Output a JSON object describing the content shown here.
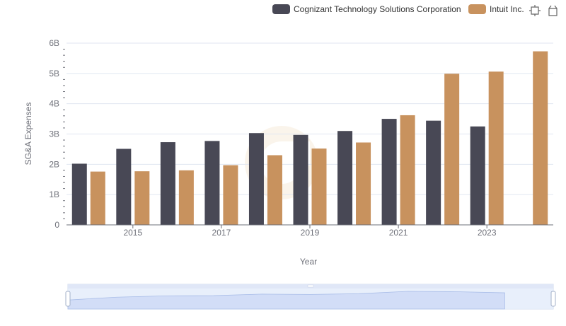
{
  "legend": {
    "items": [
      {
        "label": "Cognizant Technology Solutions Corporation",
        "color": "#484855"
      },
      {
        "label": "Intuit Inc.",
        "color": "#c8925e"
      }
    ]
  },
  "toolbox": {
    "icons": [
      "zoom-icon",
      "restore-icon"
    ]
  },
  "chart_data": {
    "type": "bar",
    "xlabel": "Year",
    "ylabel": "SG&A Expenses",
    "x": [
      2014,
      2015,
      2016,
      2017,
      2018,
      2019,
      2020,
      2021,
      2022,
      2023,
      2024
    ],
    "x_tick_labels": [
      "2015",
      "2017",
      "2019",
      "2021",
      "2023"
    ],
    "y_tick_labels": [
      "0",
      "1B",
      "2B",
      "3B",
      "4B",
      "5B",
      "6B"
    ],
    "ylim": [
      0,
      6000000000
    ],
    "grid": true,
    "legend_position": "top-right",
    "series": [
      {
        "name": "Cognizant Technology Solutions Corporation",
        "color": "#484855",
        "values": [
          2020000000,
          2510000000,
          2730000000,
          2770000000,
          3030000000,
          2970000000,
          3100000000,
          3500000000,
          3440000000,
          3250000000,
          null
        ]
      },
      {
        "name": "Intuit Inc.",
        "color": "#c8925e",
        "values": [
          1760000000,
          1770000000,
          1800000000,
          1970000000,
          2300000000,
          2520000000,
          2720000000,
          3620000000,
          4990000000,
          5060000000,
          5730000000
        ]
      }
    ]
  }
}
